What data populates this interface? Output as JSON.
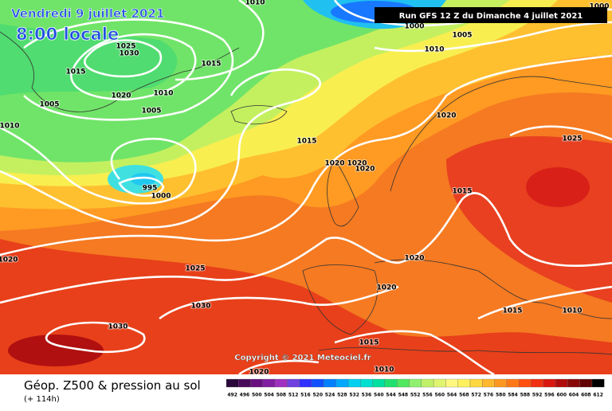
{
  "header": {
    "date": "Vendredi 9 juillet 2021",
    "time": "8:00 locale",
    "run": "Run GFS 12 Z du Dimanche 4 juillet 2021",
    "copyright": "Copyright © 2021 Meteociel.fr"
  },
  "footer": {
    "title": "Géop. Z500 & pression au sol",
    "lead": "(+ 114h)"
  },
  "legend": {
    "levels": [
      492,
      496,
      500,
      504,
      508,
      512,
      516,
      520,
      524,
      528,
      532,
      536,
      540,
      544,
      548,
      552,
      556,
      560,
      564,
      568,
      572,
      576,
      580,
      584,
      588,
      592,
      596,
      600,
      604,
      608,
      612
    ],
    "colors": [
      "#2a0a3a",
      "#4a0a5a",
      "#6a1080",
      "#8020a0",
      "#a030c0",
      "#7040e0",
      "#3030ff",
      "#1050ff",
      "#0080ff",
      "#00a8ff",
      "#00d0f0",
      "#00e0d0",
      "#00e0a0",
      "#20e070",
      "#50e860",
      "#90f070",
      "#c0f068",
      "#e0f470",
      "#fff880",
      "#fff060",
      "#ffd840",
      "#ffb830",
      "#ff9820",
      "#ff7818",
      "#ff5010",
      "#f03010",
      "#d81810",
      "#b00c0c",
      "#880808",
      "#600404",
      "#000000"
    ]
  },
  "isobar_labels": [
    1010,
    1000,
    1025,
    1030,
    1015,
    1015,
    1000,
    1005,
    1010,
    1020,
    1010,
    1005,
    1005,
    1010,
    1020,
    1015,
    1025,
    1020,
    1020,
    1020,
    995,
    1000,
    1015,
    1020,
    1025,
    1020,
    1020,
    1030,
    1015,
    1010,
    1030,
    1015,
    1010,
    1020
  ]
}
